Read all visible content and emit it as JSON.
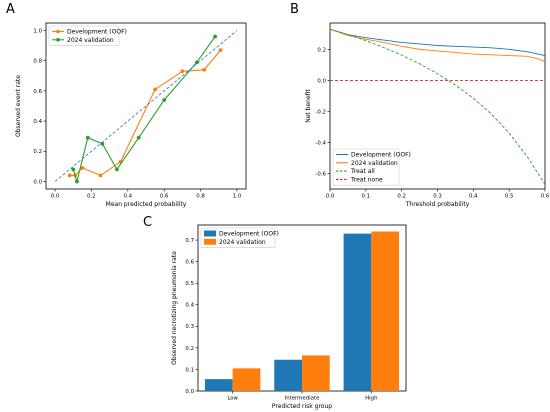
{
  "colors": {
    "blue": "#1f77b4",
    "orange": "#ff7f0e",
    "green": "#2ca02c",
    "red": "#d62728"
  },
  "chart_data": [
    {
      "panel": "A",
      "type": "line",
      "xlabel": "Mean predicted probability",
      "ylabel": "Observed event rate",
      "xlim": [
        -0.05,
        1.05
      ],
      "ylim": [
        -0.05,
        1.05
      ],
      "xticks": [
        0.0,
        0.2,
        0.4,
        0.6,
        0.8,
        1.0
      ],
      "yticks": [
        0.0,
        0.2,
        0.4,
        0.6,
        0.8,
        1.0
      ],
      "grid": false,
      "legend_position": "upper-left",
      "series": [
        {
          "name": "Development (OOF)",
          "color": "#ff7f0e",
          "marker": "circle",
          "x": [
            0.08,
            0.11,
            0.15,
            0.25,
            0.36,
            0.55,
            0.7,
            0.82,
            0.91
          ],
          "y": [
            0.04,
            0.04,
            0.09,
            0.04,
            0.13,
            0.61,
            0.73,
            0.74,
            0.87
          ]
        },
        {
          "name": "2024 validation",
          "color": "#2ca02c",
          "marker": "circle",
          "x": [
            0.1,
            0.12,
            0.18,
            0.26,
            0.34,
            0.46,
            0.6,
            0.78,
            0.88
          ],
          "y": [
            0.08,
            0.0,
            0.29,
            0.25,
            0.08,
            0.29,
            0.54,
            0.79,
            0.96
          ]
        },
        {
          "name": "",
          "color": "#1f77b4",
          "style": "dashed",
          "x": [
            0,
            1
          ],
          "y": [
            0,
            1
          ]
        }
      ]
    },
    {
      "panel": "B",
      "type": "line",
      "xlabel": "Threshold probability",
      "ylabel": "Net benefit",
      "xlim": [
        0.0,
        0.6
      ],
      "ylim": [
        -0.7,
        0.37
      ],
      "xticks": [
        0.0,
        0.1,
        0.2,
        0.3,
        0.4,
        0.5,
        0.6
      ],
      "yticks": [
        -0.6,
        -0.4,
        -0.2,
        0.0,
        0.2
      ],
      "grid": false,
      "legend_position": "lower-left",
      "series": [
        {
          "name": "Development (OOF)",
          "color": "#1f77b4",
          "style": "solid",
          "x": [
            0.0,
            0.05,
            0.1,
            0.15,
            0.2,
            0.25,
            0.3,
            0.35,
            0.4,
            0.45,
            0.5,
            0.55,
            0.58,
            0.6
          ],
          "y": [
            0.33,
            0.295,
            0.275,
            0.26,
            0.245,
            0.235,
            0.225,
            0.22,
            0.215,
            0.21,
            0.2,
            0.185,
            0.17,
            0.16
          ]
        },
        {
          "name": "2024 validation",
          "color": "#ff7f0e",
          "style": "solid",
          "x": [
            0.0,
            0.05,
            0.1,
            0.15,
            0.2,
            0.25,
            0.3,
            0.35,
            0.4,
            0.45,
            0.5,
            0.55,
            0.58,
            0.6
          ],
          "y": [
            0.33,
            0.29,
            0.265,
            0.245,
            0.22,
            0.2,
            0.19,
            0.18,
            0.17,
            0.165,
            0.16,
            0.155,
            0.14,
            0.12
          ]
        },
        {
          "name": "Treat all",
          "color": "#2ca02c",
          "style": "dashed",
          "x": [
            0.0,
            0.05,
            0.1,
            0.15,
            0.2,
            0.25,
            0.3,
            0.35,
            0.4,
            0.45,
            0.5,
            0.55,
            0.6
          ],
          "y": [
            0.33,
            0.295,
            0.256,
            0.212,
            0.163,
            0.107,
            0.043,
            -0.03,
            -0.115,
            -0.215,
            -0.34,
            -0.49,
            -0.67
          ]
        },
        {
          "name": "Treat none",
          "color": "#d62728",
          "style": "dashed",
          "x": [
            0.0,
            0.6
          ],
          "y": [
            0.0,
            0.0
          ]
        }
      ]
    },
    {
      "panel": "C",
      "type": "bar",
      "xlabel": "Predicted risk group",
      "ylabel": "Observed necrotizing pneumonia rate",
      "categories": [
        "Low",
        "Intermediate",
        "High"
      ],
      "ylim": [
        0,
        0.77
      ],
      "yticks": [
        0.0,
        0.1,
        0.2,
        0.3,
        0.4,
        0.5,
        0.6,
        0.7
      ],
      "grid": false,
      "legend_position": "upper-left",
      "series": [
        {
          "name": "Development (OOF)",
          "color": "#1f77b4",
          "values": [
            0.055,
            0.145,
            0.73
          ]
        },
        {
          "name": "2024 validation",
          "color": "#ff7f0e",
          "values": [
            0.105,
            0.165,
            0.74
          ]
        }
      ]
    }
  ],
  "panel_labels": [
    "A",
    "B",
    "C"
  ]
}
